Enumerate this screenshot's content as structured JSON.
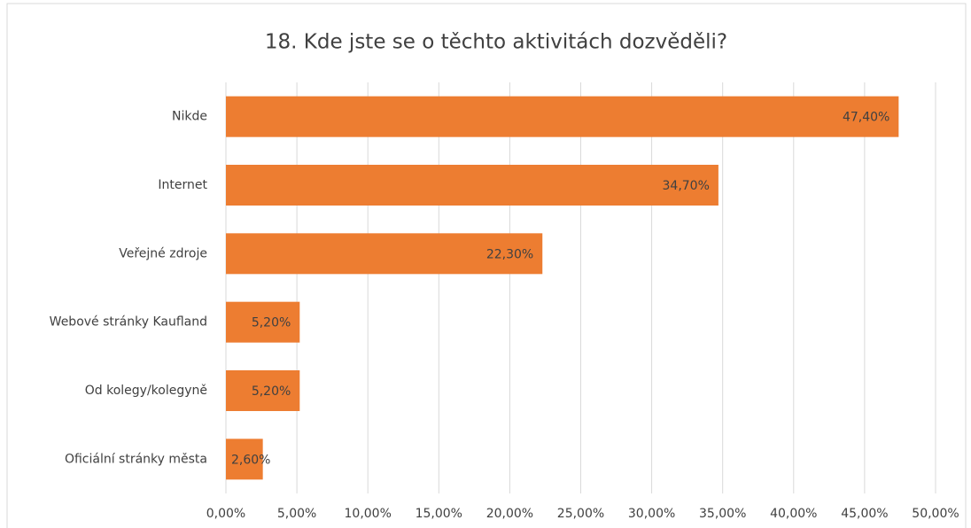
{
  "chart_data": {
    "type": "barh",
    "title": "18. Kde jste se o těchto aktivitách dozvěděli?",
    "categories": [
      "Nikde",
      "Internet",
      "Veřejné zdroje",
      "Webové stránky Kaufland",
      "Od kolegy/kolegyně",
      "Oficiální stránky města"
    ],
    "values": [
      47.4,
      34.7,
      22.3,
      5.2,
      5.2,
      2.6
    ],
    "value_labels": [
      "47,40%",
      "34,70%",
      "22,30%",
      "5,20%",
      "5,20%",
      "2,60%"
    ],
    "color": "#ed7d31",
    "xlim": [
      0,
      50
    ],
    "xticks": [
      {
        "value": 0,
        "label": "0,00%"
      },
      {
        "value": 5,
        "label": "5,00%"
      },
      {
        "value": 10,
        "label": "10,00%"
      },
      {
        "value": 15,
        "label": "15,00%"
      },
      {
        "value": 20,
        "label": "20,00%"
      },
      {
        "value": 25,
        "label": "25,00%"
      },
      {
        "value": 30,
        "label": "30,00%"
      },
      {
        "value": 35,
        "label": "35,00%"
      },
      {
        "value": 40,
        "label": "40,00%"
      },
      {
        "value": 45,
        "label": "45,00%"
      },
      {
        "value": 50,
        "label": "50,00%"
      }
    ],
    "grid": true
  }
}
